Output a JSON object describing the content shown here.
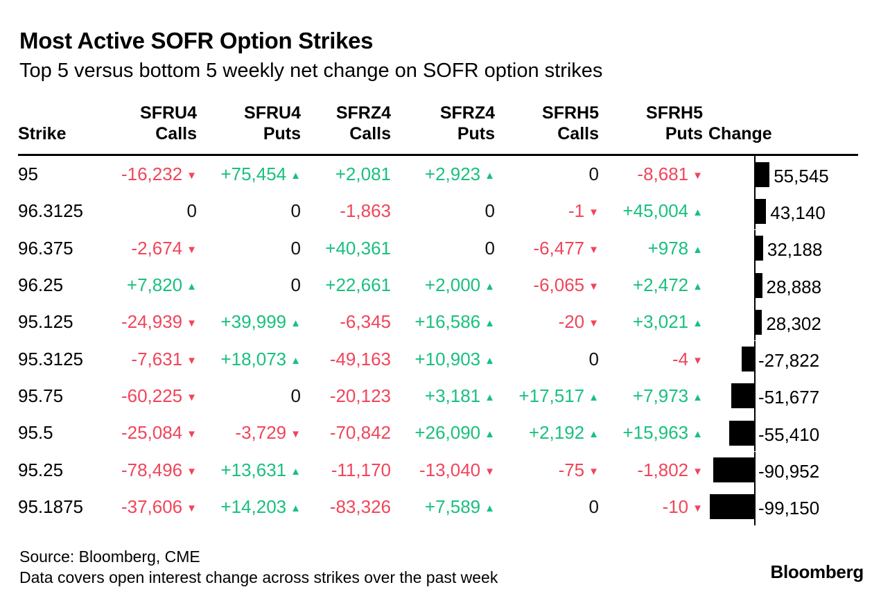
{
  "header": {
    "title": "Most Active SOFR Option Strikes",
    "subtitle": "Top 5 versus bottom 5 weekly net change on SOFR option strikes"
  },
  "colors": {
    "positive": "#19c07e",
    "negative": "#f0455a",
    "bar": "#000000"
  },
  "icons": {
    "up": "triangle-up-icon",
    "down": "triangle-down-icon"
  },
  "chart_data": {
    "type": "table",
    "columns": [
      "Strike",
      "SFRU4\nCalls",
      "SFRU4\nPuts",
      "SFRZ4\nCalls",
      "SFRZ4\nPuts",
      "SFRH5\nCalls",
      "SFRH5\nPuts",
      "Change"
    ],
    "arrow_columns": [
      1,
      2,
      4,
      5,
      6
    ],
    "rows": [
      [
        "95",
        "-16,232",
        "+75,454",
        "+2,081",
        "+2,923",
        "0",
        "-8,681",
        "55,545"
      ],
      [
        "96.3125",
        "0",
        "0",
        "-1,863",
        "0",
        "-1",
        "+45,004",
        "43,140"
      ],
      [
        "96.375",
        "-2,674",
        "0",
        "+40,361",
        "0",
        "-6,477",
        "+978",
        "32,188"
      ],
      [
        "96.25",
        "+7,820",
        "0",
        "+22,661",
        "+2,000",
        "-6,065",
        "+2,472",
        "28,888"
      ],
      [
        "95.125",
        "-24,939",
        "+39,999",
        "-6,345",
        "+16,586",
        "-20",
        "+3,021",
        "28,302"
      ],
      [
        "95.3125",
        "-7,631",
        "+18,073",
        "-49,163",
        "+10,903",
        "0",
        "-4",
        "-27,822"
      ],
      [
        "95.75",
        "-60,225",
        "0",
        "-20,123",
        "+3,181",
        "+17,517",
        "+7,973",
        "-51,677"
      ],
      [
        "95.5",
        "-25,084",
        "-3,729",
        "-70,842",
        "+26,090",
        "+2,192",
        "+15,963",
        "-55,410"
      ],
      [
        "95.25",
        "-78,496",
        "+13,631",
        "-11,170",
        "-13,040",
        "-75",
        "-1,802",
        "-90,952"
      ],
      [
        "95.1875",
        "-37,606",
        "+14,203",
        "-83,326",
        "+7,589",
        "0",
        "-10",
        "-99,150"
      ]
    ],
    "change_values": [
      55545,
      43140,
      32188,
      28888,
      28302,
      -27822,
      -51677,
      -55410,
      -90952,
      -99150
    ]
  },
  "footer": {
    "source": "Source: Bloomberg, CME",
    "note": "Data covers open interest change across strikes over the past week",
    "brand": "Bloomberg"
  }
}
